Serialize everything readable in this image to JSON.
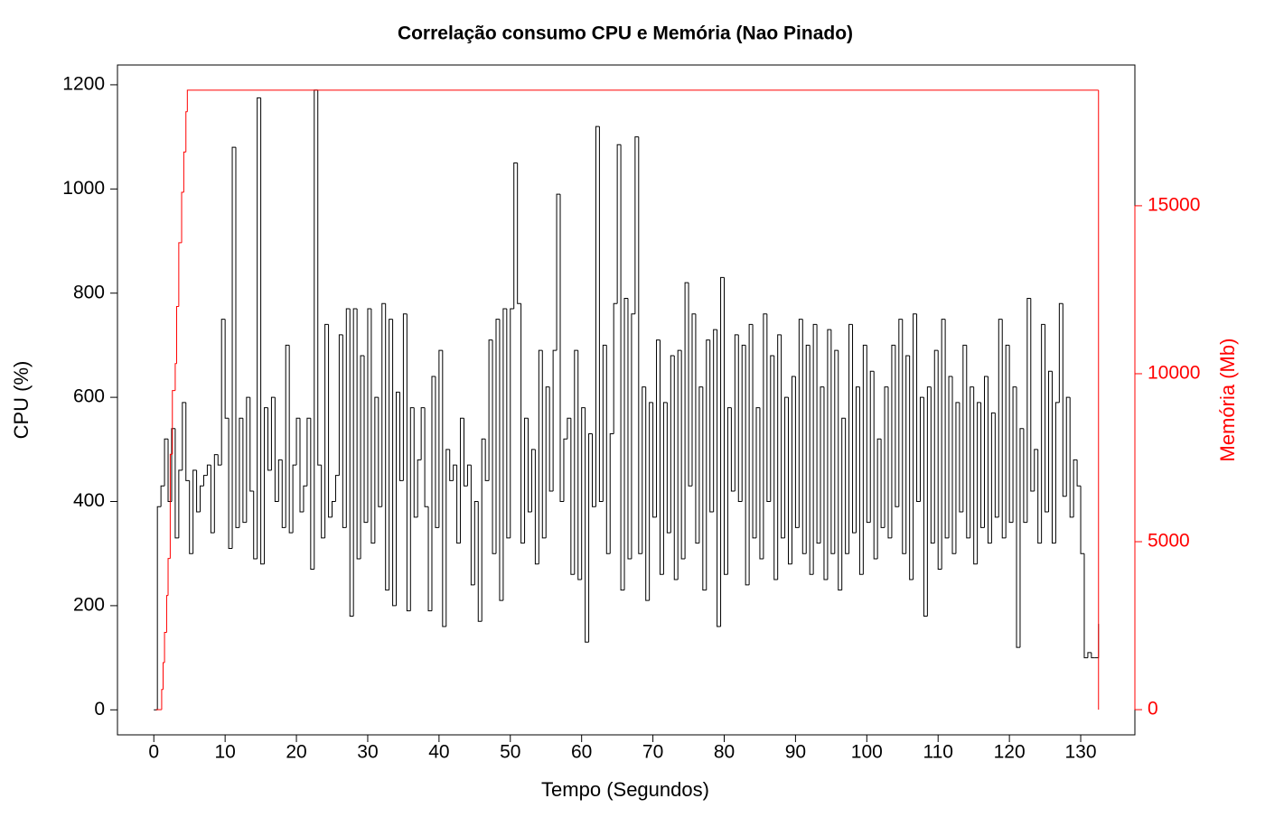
{
  "chart_data": {
    "type": "line",
    "title": "Correlação consumo CPU e Memória (Nao Pinado)",
    "xlabel": "Tempo (Segundos)",
    "ylabel": "CPU (%)",
    "y2label": "Memória (Mb)",
    "xlim": [
      -5.1,
      137.6
    ],
    "ylim": [
      -48,
      1238
    ],
    "y2lim": [
      -750,
      19190
    ],
    "xticks": [
      0,
      10,
      20,
      30,
      40,
      50,
      60,
      70,
      80,
      90,
      100,
      110,
      120,
      130
    ],
    "yticks": [
      0,
      200,
      400,
      600,
      800,
      1000,
      1200
    ],
    "y2ticks": [
      0,
      5000,
      10000,
      15000
    ],
    "series": [
      {
        "color": "#000000",
        "axis": "y",
        "x": [
          0,
          0.5,
          1,
          1.5,
          2,
          2.5,
          3,
          3.5,
          4,
          4.5,
          5,
          5.5,
          6,
          6.5,
          7,
          7.5,
          8,
          8.5,
          9,
          9.5,
          10,
          10.5,
          11,
          11.5,
          12,
          12.5,
          13,
          13.5,
          14,
          14.5,
          15,
          15.5,
          16,
          16.5,
          17,
          17.5,
          18,
          18.5,
          19,
          19.5,
          20,
          20.5,
          21,
          21.5,
          22,
          22.5,
          23,
          23.5,
          24,
          24.5,
          25,
          25.5,
          26,
          26.5,
          27,
          27.5,
          28,
          28.5,
          29,
          29.5,
          30,
          30.5,
          31,
          31.5,
          32,
          32.5,
          33,
          33.5,
          34,
          34.5,
          35,
          35.5,
          36,
          36.5,
          37,
          37.5,
          38,
          38.5,
          39,
          39.5,
          40,
          40.5,
          41,
          41.5,
          42,
          42.5,
          43,
          43.5,
          44,
          44.5,
          45,
          45.5,
          46,
          46.5,
          47,
          47.5,
          48,
          48.5,
          49,
          49.5,
          50,
          50.5,
          51,
          51.5,
          52,
          52.5,
          53,
          53.5,
          54,
          54.5,
          55,
          55.5,
          56,
          56.5,
          57,
          57.5,
          58,
          58.5,
          59,
          59.5,
          60,
          60.5,
          61,
          61.5,
          62,
          62.5,
          63,
          63.5,
          64,
          64.5,
          65,
          65.5,
          66,
          66.5,
          67,
          67.5,
          68,
          68.5,
          69,
          69.5,
          70,
          70.5,
          71,
          71.5,
          72,
          72.5,
          73,
          73.5,
          74,
          74.5,
          75,
          75.5,
          76,
          76.5,
          77,
          77.5,
          78,
          78.5,
          79,
          79.5,
          80,
          80.5,
          81,
          81.5,
          82,
          82.5,
          83,
          83.5,
          84,
          84.5,
          85,
          85.5,
          86,
          86.5,
          87,
          87.5,
          88,
          88.5,
          89,
          89.5,
          90,
          90.5,
          91,
          91.5,
          92,
          92.5,
          93,
          93.5,
          94,
          94.5,
          95,
          95.5,
          96,
          96.5,
          97,
          97.5,
          98,
          98.5,
          99,
          99.5,
          100,
          100.5,
          101,
          101.5,
          102,
          102.5,
          103,
          103.5,
          104,
          104.5,
          105,
          105.5,
          106,
          106.5,
          107,
          107.5,
          108,
          108.5,
          109,
          109.5,
          110,
          110.5,
          111,
          111.5,
          112,
          112.5,
          113,
          113.5,
          114,
          114.5,
          115,
          115.5,
          116,
          116.5,
          117,
          117.5,
          118,
          118.5,
          119,
          119.5,
          120,
          120.5,
          121,
          121.5,
          122,
          122.5,
          123,
          123.5,
          124,
          124.5,
          125,
          125.5,
          126,
          126.5,
          127,
          127.5,
          128,
          128.5,
          129,
          129.5,
          130,
          130.5,
          131,
          131.5,
          132,
          132.5
        ],
        "values": [
          0,
          390,
          430,
          520,
          400,
          540,
          330,
          460,
          590,
          440,
          300,
          460,
          380,
          430,
          450,
          470,
          340,
          490,
          470,
          750,
          560,
          310,
          1080,
          350,
          560,
          360,
          600,
          420,
          290,
          1175,
          280,
          580,
          460,
          600,
          400,
          480,
          350,
          700,
          340,
          470,
          560,
          380,
          430,
          560,
          270,
          1190,
          470,
          330,
          740,
          370,
          400,
          450,
          720,
          350,
          770,
          180,
          770,
          290,
          680,
          360,
          770,
          320,
          600,
          390,
          780,
          230,
          750,
          200,
          610,
          440,
          760,
          190,
          580,
          370,
          480,
          580,
          390,
          190,
          640,
          350,
          690,
          160,
          500,
          440,
          470,
          320,
          560,
          430,
          470,
          240,
          400,
          170,
          520,
          440,
          710,
          300,
          750,
          210,
          770,
          330,
          770,
          1050,
          780,
          320,
          560,
          380,
          500,
          280,
          690,
          330,
          620,
          420,
          690,
          990,
          400,
          520,
          560,
          260,
          690,
          250,
          580,
          130,
          530,
          390,
          1120,
          400,
          700,
          300,
          530,
          780,
          1085,
          230,
          790,
          290,
          760,
          1100,
          300,
          620,
          210,
          590,
          370,
          710,
          260,
          590,
          340,
          680,
          250,
          690,
          290,
          820,
          430,
          760,
          320,
          620,
          230,
          710,
          380,
          730,
          160,
          830,
          260,
          580,
          420,
          720,
          400,
          700,
          240,
          740,
          330,
          580,
          290,
          760,
          400,
          680,
          250,
          720,
          330,
          600,
          280,
          640,
          350,
          750,
          300,
          700,
          260,
          740,
          320,
          620,
          250,
          730,
          300,
          690,
          230,
          560,
          300,
          740,
          340,
          620,
          260,
          700,
          360,
          650,
          290,
          520,
          350,
          620,
          330,
          700,
          390,
          750,
          300,
          680,
          250,
          760,
          400,
          600,
          180,
          620,
          320,
          690,
          270,
          750,
          330,
          640,
          300,
          590,
          380,
          700,
          330,
          620,
          280,
          590,
          350,
          640,
          320,
          570,
          370,
          750,
          330,
          700,
          360,
          620,
          120,
          540,
          360,
          790,
          420,
          500,
          320,
          740,
          380,
          650,
          320,
          590,
          780,
          410,
          600,
          370,
          480,
          430,
          300,
          100,
          110,
          100,
          100,
          165
        ]
      },
      {
        "color": "#ff0000",
        "axis": "y2",
        "x": [
          0.3,
          1.0,
          1.1,
          1.3,
          1.5,
          1.8,
          2.0,
          2.3,
          2.6,
          3.0,
          3.2,
          3.5,
          3.9,
          4.2,
          4.5,
          4.7,
          132.4,
          132.5
        ],
        "values": [
          0,
          0,
          600,
          1400,
          2300,
          3400,
          4500,
          7600,
          9500,
          10300,
          12000,
          13900,
          15400,
          16600,
          17800,
          18440,
          18440,
          0
        ]
      }
    ]
  }
}
